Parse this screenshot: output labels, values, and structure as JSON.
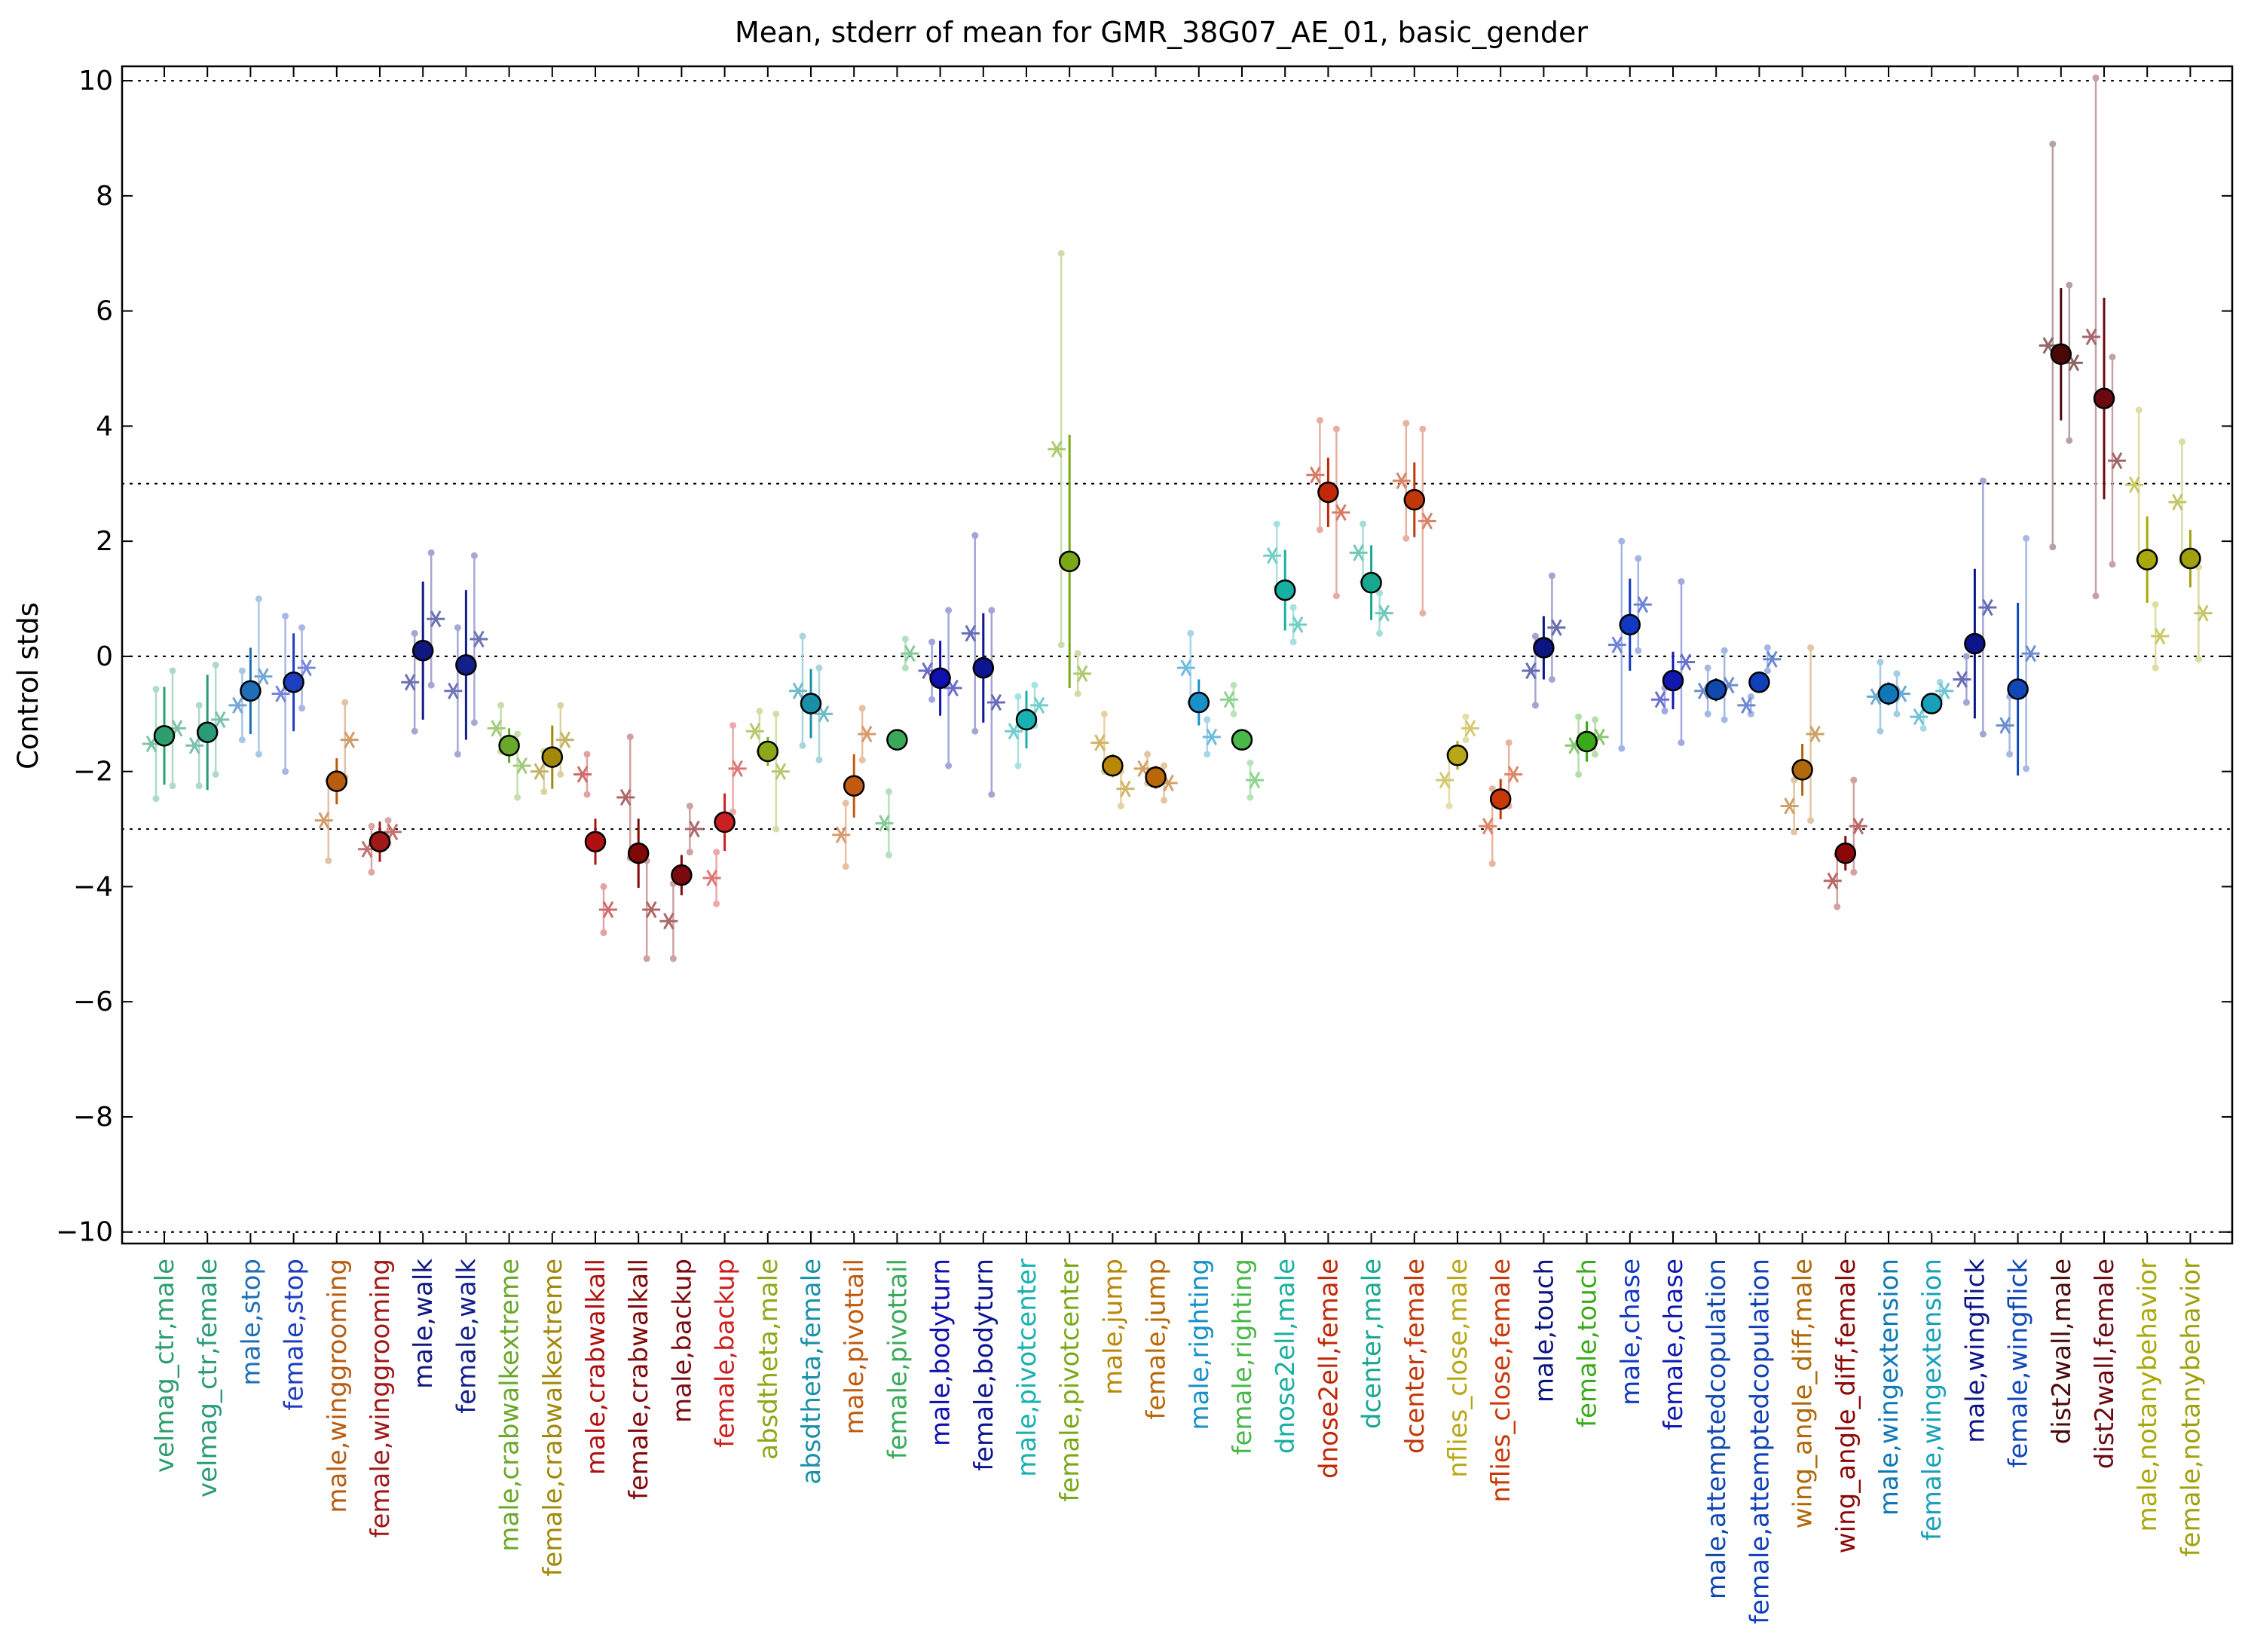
{
  "chart_data": {
    "type": "scatter",
    "title": "Mean, stderr of mean for GMR_38G07_AE_01, basic_gender",
    "ylabel": "Control stds",
    "xlabel": "",
    "ylim": [
      -10.2,
      10.25
    ],
    "yticks": [
      10,
      8,
      6,
      4,
      2,
      0,
      -2,
      -4,
      -6,
      -8,
      -10
    ],
    "ytick_labels": [
      "10",
      "8",
      "6",
      "4",
      "2",
      "0",
      "−2",
      "−4",
      "−6",
      "−8",
      "−10"
    ],
    "reference_lines": [
      10,
      3,
      0,
      -3,
      -10
    ],
    "grid": false,
    "legend": "none",
    "categories": [
      {
        "label": "velmag_ctr,male",
        "color": "#2e9e6e",
        "mean": -1.38,
        "err": 0.85,
        "reps": [
          {
            "v": -1.52,
            "e": 0.95
          },
          {
            "v": -1.25,
            "e": 1.0
          }
        ]
      },
      {
        "label": "velmag_ctr,female",
        "color": "#2a9a78",
        "mean": -1.32,
        "err": 1.0,
        "reps": [
          {
            "v": -1.55,
            "e": 0.7
          },
          {
            "v": -1.1,
            "e": 0.95
          }
        ]
      },
      {
        "label": "male,stop",
        "color": "#1f6fb8",
        "mean": -0.6,
        "err": 0.75,
        "reps": [
          {
            "v": -0.85,
            "e": 0.6
          },
          {
            "v": -0.35,
            "e": 1.35
          }
        ]
      },
      {
        "label": "female,stop",
        "color": "#1e3ec0",
        "mean": -0.45,
        "err": 0.85,
        "reps": [
          {
            "v": -0.65,
            "e": 1.35
          },
          {
            "v": -0.2,
            "e": 0.7
          }
        ]
      },
      {
        "label": "male,winggrooming",
        "color": "#b85c10",
        "mean": -2.17,
        "err": 0.4,
        "reps": [
          {
            "v": -2.85,
            "e": 0.7
          },
          {
            "v": -1.45,
            "e": 0.65
          }
        ]
      },
      {
        "label": "female,winggrooming",
        "color": "#a01818",
        "mean": -3.22,
        "err": 0.35,
        "reps": [
          {
            "v": -3.35,
            "e": 0.4
          },
          {
            "v": -3.05,
            "e": 0.2
          }
        ]
      },
      {
        "label": "male,walk",
        "color": "#101880",
        "mean": 0.1,
        "err": 1.2,
        "reps": [
          {
            "v": -0.45,
            "e": 0.85
          },
          {
            "v": 0.65,
            "e": 1.15
          }
        ]
      },
      {
        "label": "female,walk",
        "color": "#14208a",
        "mean": -0.15,
        "err": 1.3,
        "reps": [
          {
            "v": -0.6,
            "e": 1.1
          },
          {
            "v": 0.3,
            "e": 1.45
          }
        ]
      },
      {
        "label": "male,crabwalkextreme",
        "color": "#6aa82a",
        "mean": -1.55,
        "err": 0.3,
        "reps": [
          {
            "v": -1.25,
            "e": 0.4
          },
          {
            "v": -1.9,
            "e": 0.55
          }
        ]
      },
      {
        "label": "female,crabwalkextreme",
        "color": "#a08808",
        "mean": -1.75,
        "err": 0.55,
        "reps": [
          {
            "v": -2.0,
            "e": 0.35
          },
          {
            "v": -1.45,
            "e": 0.6
          }
        ]
      },
      {
        "label": "male,crabwalkall",
        "color": "#b01010",
        "mean": -3.22,
        "err": 0.4,
        "reps": [
          {
            "v": -2.05,
            "e": 0.35
          },
          {
            "v": -4.4,
            "e": 0.4
          }
        ]
      },
      {
        "label": "female,crabwalkall",
        "color": "#800808",
        "mean": -3.42,
        "err": 0.6,
        "reps": [
          {
            "v": -2.45,
            "e": 1.05
          },
          {
            "v": -4.4,
            "e": 0.85
          }
        ]
      },
      {
        "label": "male,backup",
        "color": "#7a0a10",
        "mean": -3.8,
        "err": 0.35,
        "reps": [
          {
            "v": -4.6,
            "e": 0.65
          },
          {
            "v": -3.0,
            "e": 0.4
          }
        ]
      },
      {
        "label": "female,backup",
        "color": "#cc2020",
        "mean": -2.88,
        "err": 0.5,
        "reps": [
          {
            "v": -3.85,
            "e": 0.45
          },
          {
            "v": -1.95,
            "e": 0.75
          }
        ]
      },
      {
        "label": "absdtheta,male",
        "color": "#8aa818",
        "mean": -1.65,
        "err": 0.25,
        "reps": [
          {
            "v": -1.3,
            "e": 0.35
          },
          {
            "v": -2.0,
            "e": 1.0
          }
        ]
      },
      {
        "label": "absdtheta,female",
        "color": "#1890a8",
        "mean": -0.82,
        "err": 0.6,
        "reps": [
          {
            "v": -0.6,
            "e": 0.95
          },
          {
            "v": -1.0,
            "e": 0.8
          }
        ]
      },
      {
        "label": "male,pivottail",
        "color": "#c05a10",
        "mean": -2.25,
        "err": 0.55,
        "reps": [
          {
            "v": -3.1,
            "e": 0.55
          },
          {
            "v": -1.35,
            "e": 0.45
          }
        ]
      },
      {
        "label": "female,pivottail",
        "color": "#3aaa5a",
        "mean": -1.45,
        "err": 0.15,
        "reps": [
          {
            "v": -2.9,
            "e": 0.55
          },
          {
            "v": 0.05,
            "e": 0.25
          }
        ]
      },
      {
        "label": "male,bodyturn",
        "color": "#1010b0",
        "mean": -0.38,
        "err": 0.65,
        "reps": [
          {
            "v": -0.25,
            "e": 0.5
          },
          {
            "v": -0.55,
            "e": 1.35
          }
        ]
      },
      {
        "label": "female,bodyturn",
        "color": "#0c1490",
        "mean": -0.2,
        "err": 0.95,
        "reps": [
          {
            "v": 0.4,
            "e": 1.7
          },
          {
            "v": -0.8,
            "e": 1.6
          }
        ]
      },
      {
        "label": "male,pivotcenter",
        "color": "#18b0b0",
        "mean": -1.1,
        "err": 0.5,
        "reps": [
          {
            "v": -1.3,
            "e": 0.6
          },
          {
            "v": -0.85,
            "e": 0.35
          }
        ]
      },
      {
        "label": "female,pivotcenter",
        "color": "#7aa818",
        "mean": 1.65,
        "err": 2.2,
        "reps": [
          {
            "v": 3.6,
            "e": 3.4
          },
          {
            "v": -0.3,
            "e": 0.35
          }
        ]
      },
      {
        "label": "male,jump",
        "color": "#b88808",
        "mean": -1.9,
        "err": 0.2,
        "reps": [
          {
            "v": -1.5,
            "e": 0.5
          },
          {
            "v": -2.3,
            "e": 0.3
          }
        ]
      },
      {
        "label": "female,jump",
        "color": "#b86808",
        "mean": -2.1,
        "err": 0.2,
        "reps": [
          {
            "v": -1.95,
            "e": 0.25
          },
          {
            "v": -2.2,
            "e": 0.3
          }
        ]
      },
      {
        "label": "male,righting",
        "color": "#1890c8",
        "mean": -0.8,
        "err": 0.4,
        "reps": [
          {
            "v": -0.2,
            "e": 0.6
          },
          {
            "v": -1.4,
            "e": 0.3
          }
        ]
      },
      {
        "label": "female,righting",
        "color": "#48b848",
        "mean": -1.45,
        "err": 0.15,
        "reps": [
          {
            "v": -0.75,
            "e": 0.25
          },
          {
            "v": -2.15,
            "e": 0.3
          }
        ]
      },
      {
        "label": "dnose2ell,male",
        "color": "#18b0a0",
        "mean": 1.15,
        "err": 0.7,
        "reps": [
          {
            "v": 1.75,
            "e": 0.55
          },
          {
            "v": 0.55,
            "e": 0.3
          }
        ]
      },
      {
        "label": "dnose2ell,female",
        "color": "#c02808",
        "mean": 2.85,
        "err": 0.6,
        "reps": [
          {
            "v": 3.15,
            "e": 0.95
          },
          {
            "v": 2.5,
            "e": 1.45
          }
        ]
      },
      {
        "label": "dcenter,male",
        "color": "#18a890",
        "mean": 1.28,
        "err": 0.65,
        "reps": [
          {
            "v": 1.8,
            "e": 0.5
          },
          {
            "v": 0.75,
            "e": 0.35
          }
        ]
      },
      {
        "label": "dcenter,female",
        "color": "#c03808",
        "mean": 2.72,
        "err": 0.65,
        "reps": [
          {
            "v": 3.05,
            "e": 1.0
          },
          {
            "v": 2.35,
            "e": 1.6
          }
        ]
      },
      {
        "label": "nflies_close,male",
        "color": "#b8a818",
        "mean": -1.72,
        "err": 0.25,
        "reps": [
          {
            "v": -2.15,
            "e": 0.45
          },
          {
            "v": -1.25,
            "e": 0.2
          }
        ]
      },
      {
        "label": "nflies_close,female",
        "color": "#c83808",
        "mean": -2.48,
        "err": 0.35,
        "reps": [
          {
            "v": -2.95,
            "e": 0.65
          },
          {
            "v": -2.05,
            "e": 0.55
          }
        ]
      },
      {
        "label": "male,touch",
        "color": "#0c1480",
        "mean": 0.15,
        "err": 0.55,
        "reps": [
          {
            "v": -0.25,
            "e": 0.6
          },
          {
            "v": 0.5,
            "e": 0.9
          }
        ]
      },
      {
        "label": "female,touch",
        "color": "#3aaa1a",
        "mean": -1.48,
        "err": 0.35,
        "reps": [
          {
            "v": -1.55,
            "e": 0.5
          },
          {
            "v": -1.4,
            "e": 0.3
          }
        ]
      },
      {
        "label": "male,chase",
        "color": "#1038c0",
        "mean": 0.55,
        "err": 0.8,
        "reps": [
          {
            "v": 0.2,
            "e": 1.8
          },
          {
            "v": 0.9,
            "e": 0.8
          }
        ]
      },
      {
        "label": "female,chase",
        "color": "#1018b0",
        "mean": -0.42,
        "err": 0.5,
        "reps": [
          {
            "v": -0.75,
            "e": 0.2
          },
          {
            "v": -0.1,
            "e": 1.4
          }
        ]
      },
      {
        "label": "male,attemptedcopulation",
        "color": "#1048b0",
        "mean": -0.58,
        "err": 0.2,
        "reps": [
          {
            "v": -0.6,
            "e": 0.4
          },
          {
            "v": -0.5,
            "e": 0.6
          }
        ]
      },
      {
        "label": "female,attemptedcopulation",
        "color": "#1040b8",
        "mean": -0.45,
        "err": 0.15,
        "reps": [
          {
            "v": -0.85,
            "e": 0.15
          },
          {
            "v": -0.05,
            "e": 0.2
          }
        ]
      },
      {
        "label": "wing_angle_diff,male",
        "color": "#b06808",
        "mean": -1.97,
        "err": 0.45,
        "reps": [
          {
            "v": -2.6,
            "e": 0.45
          },
          {
            "v": -1.35,
            "e": 1.5
          }
        ]
      },
      {
        "label": "wing_angle_diff,female",
        "color": "#8c0808",
        "mean": -3.42,
        "err": 0.3,
        "reps": [
          {
            "v": -3.9,
            "e": 0.45
          },
          {
            "v": -2.95,
            "e": 0.8
          }
        ]
      },
      {
        "label": "male,wingextension",
        "color": "#1078b8",
        "mean": -0.65,
        "err": 0.2,
        "reps": [
          {
            "v": -0.7,
            "e": 0.6
          },
          {
            "v": -0.65,
            "e": 0.35
          }
        ]
      },
      {
        "label": "female,wingextension",
        "color": "#18a0b8",
        "mean": -0.82,
        "err": 0.15,
        "reps": [
          {
            "v": -1.05,
            "e": 0.2
          },
          {
            "v": -0.6,
            "e": 0.15
          }
        ]
      },
      {
        "label": "male,wingflick",
        "color": "#0c1488",
        "mean": 0.22,
        "err": 1.3,
        "reps": [
          {
            "v": -0.4,
            "e": 0.4
          },
          {
            "v": 0.85,
            "e": 2.2
          }
        ]
      },
      {
        "label": "female,wingflick",
        "color": "#1048b8",
        "mean": -0.57,
        "err": 1.5,
        "reps": [
          {
            "v": -1.2,
            "e": 0.5
          },
          {
            "v": 0.05,
            "e": 2.0
          }
        ]
      },
      {
        "label": "dist2wall,male",
        "color": "#4a0808",
        "mean": 5.25,
        "err": 1.15,
        "reps": [
          {
            "v": 5.4,
            "e": 3.5
          },
          {
            "v": 5.1,
            "e": 1.35
          }
        ]
      },
      {
        "label": "dist2wall,female",
        "color": "#6a0a10",
        "mean": 4.48,
        "err": 1.75,
        "reps": [
          {
            "v": 5.55,
            "e": 4.5
          },
          {
            "v": 3.4,
            "e": 1.8
          }
        ]
      },
      {
        "label": "male,notanybehavior",
        "color": "#a8a808",
        "mean": 1.68,
        "err": 0.75,
        "reps": [
          {
            "v": 2.98,
            "e": 1.3
          },
          {
            "v": 0.35,
            "e": 0.55
          }
        ]
      },
      {
        "label": "female,notanybehavior",
        "color": "#a0a010",
        "mean": 1.7,
        "err": 0.5,
        "reps": [
          {
            "v": 2.68,
            "e": 1.05
          },
          {
            "v": 0.75,
            "e": 0.8
          }
        ]
      }
    ]
  }
}
